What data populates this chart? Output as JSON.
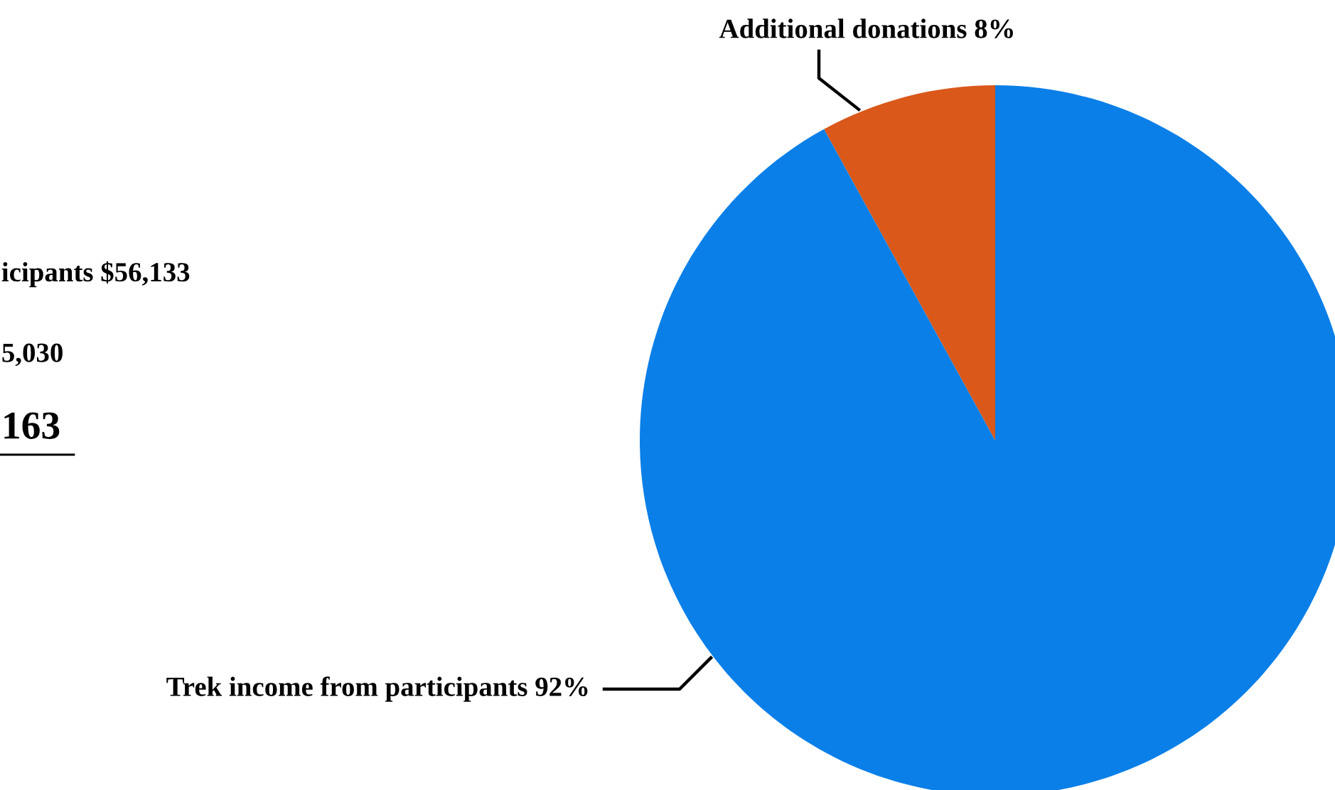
{
  "chart_data": {
    "type": "pie",
    "categories": [
      "Additional donations",
      "Trek income from participants"
    ],
    "values": [
      8,
      92
    ],
    "colors": [
      "#d9581a",
      "#0a7fe8"
    ],
    "value_labels": [
      "8%",
      "92%"
    ],
    "annotations": [
      "icipants $56,133",
      "5,030",
      "163"
    ]
  }
}
